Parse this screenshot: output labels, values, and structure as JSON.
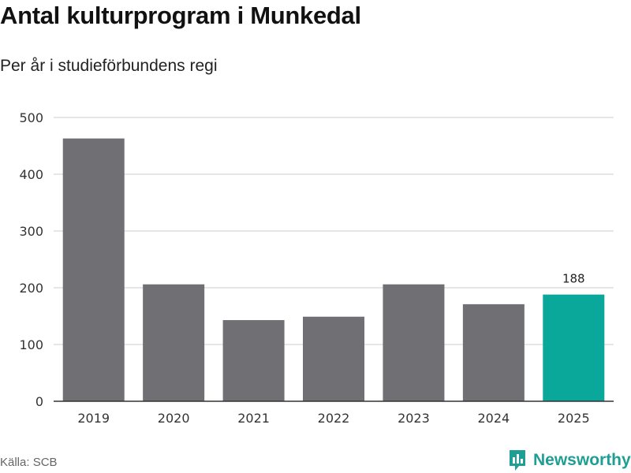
{
  "header": {
    "title": "Antal kulturprogram i Munkedal",
    "subtitle": "Per år i studieförbundens regi"
  },
  "footer": {
    "source": "Källa: SCB",
    "brand": "Newsworthy",
    "brand_icon": "newsworthy-logo-icon"
  },
  "colors": {
    "bar": "#706f74",
    "highlight": "#0aa89b",
    "grid": "#dddddd",
    "axis": "#333333",
    "brand": "#1f9e94"
  },
  "chart_data": {
    "type": "bar",
    "title": "Antal kulturprogram i Munkedal",
    "subtitle": "Per år i studieförbundens regi",
    "xlabel": "",
    "ylabel": "",
    "categories": [
      "2019",
      "2020",
      "2021",
      "2022",
      "2023",
      "2024",
      "2025"
    ],
    "values": [
      463,
      206,
      143,
      149,
      206,
      171,
      188
    ],
    "highlight_index": 6,
    "data_labels": [
      {
        "index": 6,
        "text": "188"
      }
    ],
    "ylim": [
      0,
      500
    ],
    "yticks": [
      0,
      100,
      200,
      300,
      400,
      500
    ],
    "grid": true,
    "legend": "none"
  }
}
